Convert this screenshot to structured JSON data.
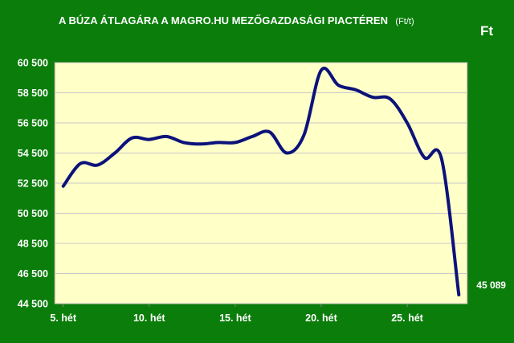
{
  "chart_data": {
    "type": "line",
    "title": "A BÚZA ÁTLAGÁRA A MAGRO.HU MEZŐGAZDASÁGI PIACTÉREN",
    "title_unit": "(Ft/t)",
    "unit_label": "Ft",
    "x_tick_labels": [
      "5. hét",
      "10. hét",
      "15. hét",
      "20. hét",
      "25. hét"
    ],
    "x_tick_weeks": [
      5,
      10,
      15,
      20,
      25
    ],
    "y_tick_labels": [
      "60 500",
      "58 500",
      "56 500",
      "54 500",
      "52 500",
      "50 500",
      "48 500",
      "46 500",
      "44 500"
    ],
    "ylim": [
      44500,
      60500
    ],
    "xlim": [
      4.5,
      28.5
    ],
    "grid": true,
    "colors": {
      "background": "#0a7d0a",
      "plot_area": "#ffffc8",
      "line": "#0c127a",
      "grid": "#c8c8c8"
    },
    "series": [
      {
        "x": [
          5,
          6,
          7,
          8,
          9,
          10,
          11,
          12,
          13,
          14,
          15,
          16,
          17,
          18,
          19,
          20,
          21,
          22,
          23,
          24,
          25,
          26,
          27,
          28
        ],
        "values": [
          52300,
          53800,
          53700,
          54500,
          55500,
          55400,
          55600,
          55200,
          55100,
          55200,
          55200,
          55600,
          55900,
          54500,
          55700,
          60000,
          59000,
          58700,
          58200,
          58100,
          56500,
          54200,
          54100,
          45089
        ]
      }
    ],
    "annotation": "45 089"
  }
}
